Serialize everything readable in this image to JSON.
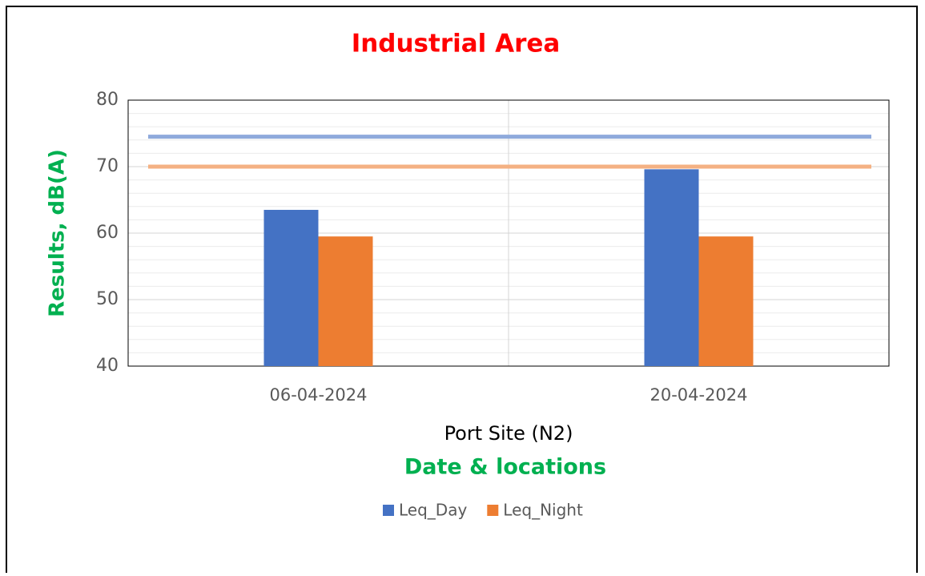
{
  "chart_data": {
    "type": "bar",
    "title": "Industrial Area",
    "xlabel": "Port Site (N2)",
    "xlabel2": "Date & locations",
    "ylabel": "Results, dB(A)",
    "categories": [
      "06-04-2024",
      "20-04-2024"
    ],
    "series": [
      {
        "name": "Leq_Day",
        "color": "#4472c4",
        "values": [
          63.5,
          69.6
        ]
      },
      {
        "name": "Leq_Night",
        "color": "#ed7d31",
        "values": [
          59.5,
          59.5
        ]
      }
    ],
    "reference_lines": [
      {
        "value": 74.5,
        "color": "#8faadc"
      },
      {
        "value": 70,
        "color": "#f4b183"
      }
    ],
    "ylim": [
      40,
      80
    ],
    "yticks": [
      40,
      50,
      60,
      70,
      80
    ],
    "minor_yticks": [
      42,
      44,
      46,
      48,
      52,
      54,
      56,
      58,
      62,
      64,
      66,
      68,
      72,
      74,
      76,
      78
    ],
    "grid": true,
    "legend": "bottom"
  }
}
